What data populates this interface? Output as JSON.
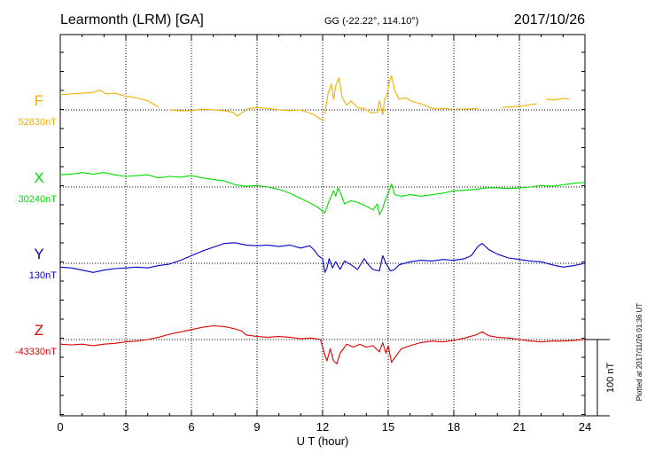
{
  "header": {
    "station": "Learmonth (LRM)  [GA]",
    "coords": "GG (-22.22°, 114.10°)",
    "date": "2017/10/26"
  },
  "footer": {
    "plotted": "Plotted at 2017/11/26 01:36 UT"
  },
  "chart_data": {
    "type": "line",
    "title": "Learmonth (LRM)  [GA]",
    "xlabel": "U T (hour)",
    "xlim": [
      0,
      24
    ],
    "xticks": [
      "0",
      "3",
      "6",
      "9",
      "12",
      "15",
      "18",
      "21",
      "24"
    ],
    "grid": true,
    "scale_bar": {
      "label": "100 nT",
      "value_nT": 100
    },
    "series": [
      {
        "name": "F",
        "baseline_label": "52830nT",
        "baseline_nT": 52830,
        "color": "#f0b000",
        "points": [
          [
            0.0,
            20
          ],
          [
            0.5,
            21
          ],
          [
            1.0,
            22
          ],
          [
            1.5,
            23
          ],
          [
            1.8,
            26
          ],
          [
            2.1,
            21
          ],
          [
            2.5,
            22
          ],
          [
            3.0,
            18
          ],
          [
            3.3,
            17
          ],
          [
            3.6,
            15
          ],
          [
            4.0,
            12
          ],
          [
            4.3,
            7
          ],
          [
            4.5,
            4
          ],
          null,
          [
            5.0,
            0
          ],
          [
            5.5,
            -1
          ],
          [
            6.0,
            -1
          ],
          [
            6.5,
            1
          ],
          [
            7.0,
            0
          ],
          [
            7.5,
            -1
          ],
          [
            7.9,
            -3
          ],
          [
            8.1,
            -8
          ],
          [
            8.3,
            -4
          ],
          [
            8.6,
            2
          ],
          [
            9.0,
            3
          ],
          [
            9.5,
            2
          ],
          [
            10.0,
            0
          ],
          [
            10.5,
            -1
          ],
          [
            11.0,
            0
          ],
          [
            11.3,
            -3
          ],
          [
            11.6,
            -6
          ],
          [
            11.9,
            -12
          ],
          [
            12.1,
            -14
          ],
          null,
          [
            12.1,
            -5
          ],
          [
            12.25,
            22
          ],
          [
            12.4,
            34
          ],
          [
            12.5,
            14
          ],
          [
            12.6,
            32
          ],
          [
            12.75,
            42
          ],
          [
            12.9,
            16
          ],
          [
            13.1,
            6
          ],
          [
            13.3,
            12
          ],
          [
            13.6,
            3
          ],
          [
            13.9,
            2
          ],
          [
            14.2,
            -4
          ],
          [
            14.5,
            -3
          ],
          [
            14.6,
            12
          ],
          [
            14.75,
            -6
          ],
          [
            14.85,
            15
          ],
          [
            14.95,
            20
          ],
          [
            15.05,
            36
          ],
          [
            15.15,
            45
          ],
          [
            15.3,
            25
          ],
          [
            15.5,
            14
          ],
          [
            15.8,
            16
          ],
          [
            16.1,
            11
          ],
          [
            16.5,
            8
          ],
          [
            16.9,
            3
          ],
          [
            17.3,
            1
          ],
          [
            17.6,
            2
          ],
          [
            17.9,
            1
          ],
          null,
          [
            18.1,
            1
          ],
          [
            18.6,
            1
          ],
          [
            19.1,
            2
          ],
          null,
          [
            20.2,
            3
          ],
          [
            20.6,
            4
          ],
          [
            21.1,
            5
          ],
          [
            21.5,
            7
          ],
          [
            21.8,
            8
          ],
          null,
          [
            22.2,
            14
          ],
          [
            22.6,
            13
          ],
          [
            23.0,
            15
          ],
          [
            23.3,
            14
          ]
        ]
      },
      {
        "name": "X",
        "baseline_label": "30240nT",
        "baseline_nT": 30240,
        "color": "#00dd00",
        "points": [
          [
            0.0,
            16
          ],
          [
            0.5,
            17
          ],
          [
            1.0,
            19
          ],
          [
            1.5,
            17
          ],
          [
            2.0,
            19
          ],
          [
            2.5,
            16
          ],
          [
            3.0,
            14
          ],
          [
            3.5,
            15
          ],
          [
            4.0,
            16
          ],
          [
            4.5,
            12
          ],
          [
            5.0,
            14
          ],
          [
            5.5,
            13
          ],
          [
            6.0,
            15
          ],
          [
            6.5,
            12
          ],
          [
            7.0,
            10
          ],
          [
            7.5,
            8
          ],
          [
            8.0,
            3
          ],
          [
            8.5,
            1
          ],
          [
            9.0,
            2
          ],
          [
            9.5,
            0
          ],
          [
            10.0,
            -3
          ],
          [
            10.5,
            -8
          ],
          [
            11.0,
            -15
          ],
          [
            11.5,
            -22
          ],
          [
            11.8,
            -27
          ],
          [
            12.1,
            -34
          ],
          [
            12.3,
            -18
          ],
          [
            12.5,
            -5
          ],
          [
            12.6,
            -12
          ],
          [
            12.7,
            -1
          ],
          [
            12.85,
            -10
          ],
          [
            13.0,
            -22
          ],
          [
            13.3,
            -18
          ],
          [
            13.6,
            -20
          ],
          [
            14.0,
            -25
          ],
          [
            14.3,
            -30
          ],
          [
            14.5,
            -22
          ],
          [
            14.6,
            -36
          ],
          [
            14.75,
            -28
          ],
          [
            14.85,
            -18
          ],
          [
            15.0,
            -8
          ],
          [
            15.15,
            4
          ],
          [
            15.3,
            -10
          ],
          [
            15.6,
            -12
          ],
          [
            16.0,
            -10
          ],
          [
            16.5,
            -12
          ],
          [
            17.0,
            -10
          ],
          [
            17.5,
            -8
          ],
          [
            18.0,
            -5
          ],
          [
            18.5,
            -4
          ],
          [
            19.0,
            -3
          ],
          [
            19.5,
            -1
          ],
          [
            20.0,
            -1
          ],
          [
            20.5,
            -2
          ],
          [
            21.0,
            -1
          ],
          [
            21.5,
            0
          ],
          [
            22.0,
            2
          ],
          [
            22.5,
            1
          ],
          [
            23.0,
            3
          ],
          [
            23.5,
            5
          ],
          [
            24.0,
            6
          ]
        ]
      },
      {
        "name": "Y",
        "baseline_label": "130nT",
        "baseline_nT": 130,
        "color": "#0000cc",
        "points": [
          [
            0.0,
            -5
          ],
          [
            0.5,
            -6
          ],
          [
            1.0,
            -9
          ],
          [
            1.5,
            -12
          ],
          [
            2.0,
            -9
          ],
          [
            2.5,
            -7
          ],
          [
            3.0,
            -6
          ],
          [
            3.5,
            -5
          ],
          [
            4.0,
            -6
          ],
          [
            4.5,
            -3
          ],
          [
            5.0,
            -1
          ],
          [
            5.5,
            4
          ],
          [
            6.0,
            10
          ],
          [
            6.5,
            16
          ],
          [
            7.0,
            21
          ],
          [
            7.5,
            26
          ],
          [
            8.0,
            27
          ],
          [
            8.5,
            24
          ],
          [
            9.0,
            23
          ],
          [
            9.5,
            24
          ],
          [
            10.0,
            22
          ],
          [
            10.5,
            24
          ],
          [
            11.0,
            20
          ],
          [
            11.4,
            23
          ],
          [
            11.6,
            18
          ],
          [
            11.8,
            10
          ],
          [
            12.0,
            6
          ],
          [
            12.1,
            -12
          ],
          [
            12.2,
            -6
          ],
          [
            12.3,
            6
          ],
          [
            12.45,
            -6
          ],
          [
            12.6,
            2
          ],
          [
            12.8,
            -8
          ],
          [
            13.0,
            3
          ],
          [
            13.3,
            -2
          ],
          [
            13.6,
            -8
          ],
          [
            13.9,
            6
          ],
          [
            14.1,
            -2
          ],
          [
            14.3,
            -8
          ],
          [
            14.6,
            -10
          ],
          [
            14.75,
            10
          ],
          [
            14.9,
            0
          ],
          [
            15.1,
            -10
          ],
          [
            15.3,
            -8
          ],
          [
            15.5,
            -2
          ],
          [
            16.0,
            2
          ],
          [
            16.5,
            4
          ],
          [
            17.0,
            3
          ],
          [
            17.5,
            5
          ],
          [
            18.0,
            4
          ],
          [
            18.5,
            6
          ],
          [
            18.8,
            10
          ],
          [
            19.1,
            22
          ],
          [
            19.3,
            26
          ],
          [
            19.6,
            18
          ],
          [
            20.0,
            12
          ],
          [
            20.5,
            7
          ],
          [
            21.0,
            5
          ],
          [
            21.5,
            3
          ],
          [
            22.0,
            2
          ],
          [
            22.5,
            -2
          ],
          [
            23.0,
            -5
          ],
          [
            23.5,
            -3
          ],
          [
            24.0,
            0
          ]
        ]
      },
      {
        "name": "Z",
        "baseline_label": "-43330nT",
        "baseline_nT": -43330,
        "color": "#dd0000",
        "points": [
          [
            0.0,
            -6
          ],
          [
            0.5,
            -7
          ],
          [
            1.0,
            -6
          ],
          [
            1.5,
            -8
          ],
          [
            2.0,
            -6
          ],
          [
            2.5,
            -5
          ],
          [
            3.0,
            -3
          ],
          [
            3.5,
            -2
          ],
          [
            4.0,
            0
          ],
          [
            4.5,
            3
          ],
          [
            5.0,
            7
          ],
          [
            5.5,
            10
          ],
          [
            6.0,
            13
          ],
          [
            6.5,
            16
          ],
          [
            7.0,
            18
          ],
          [
            7.5,
            17
          ],
          [
            8.0,
            14
          ],
          [
            8.3,
            11
          ],
          [
            8.5,
            6
          ],
          [
            9.0,
            4
          ],
          [
            9.5,
            3
          ],
          [
            10.0,
            4
          ],
          [
            10.5,
            3
          ],
          [
            11.0,
            1
          ],
          [
            11.5,
            2
          ],
          [
            11.9,
            0
          ],
          [
            12.1,
            -20
          ],
          [
            12.2,
            -28
          ],
          [
            12.35,
            -12
          ],
          [
            12.5,
            -28
          ],
          [
            12.65,
            -32
          ],
          [
            12.8,
            -18
          ],
          [
            13.1,
            -6
          ],
          [
            13.4,
            -10
          ],
          [
            13.7,
            -6
          ],
          [
            14.0,
            -10
          ],
          [
            14.3,
            -8
          ],
          [
            14.6,
            -16
          ],
          [
            14.75,
            -4
          ],
          [
            14.9,
            -18
          ],
          [
            15.0,
            -8
          ],
          [
            15.15,
            -30
          ],
          [
            15.3,
            -24
          ],
          [
            15.6,
            -12
          ],
          [
            16.0,
            -8
          ],
          [
            16.5,
            -4
          ],
          [
            17.0,
            -2
          ],
          [
            17.5,
            -3
          ],
          [
            18.0,
            -1
          ],
          [
            18.5,
            2
          ],
          [
            19.0,
            6
          ],
          [
            19.3,
            10
          ],
          [
            19.6,
            5
          ],
          [
            20.0,
            3
          ],
          [
            20.5,
            2
          ],
          [
            21.0,
            0
          ],
          [
            21.5,
            -2
          ],
          [
            22.0,
            -3
          ],
          [
            22.5,
            -2
          ],
          [
            23.0,
            -2
          ],
          [
            23.5,
            -1
          ],
          [
            24.0,
            0
          ]
        ]
      }
    ]
  }
}
